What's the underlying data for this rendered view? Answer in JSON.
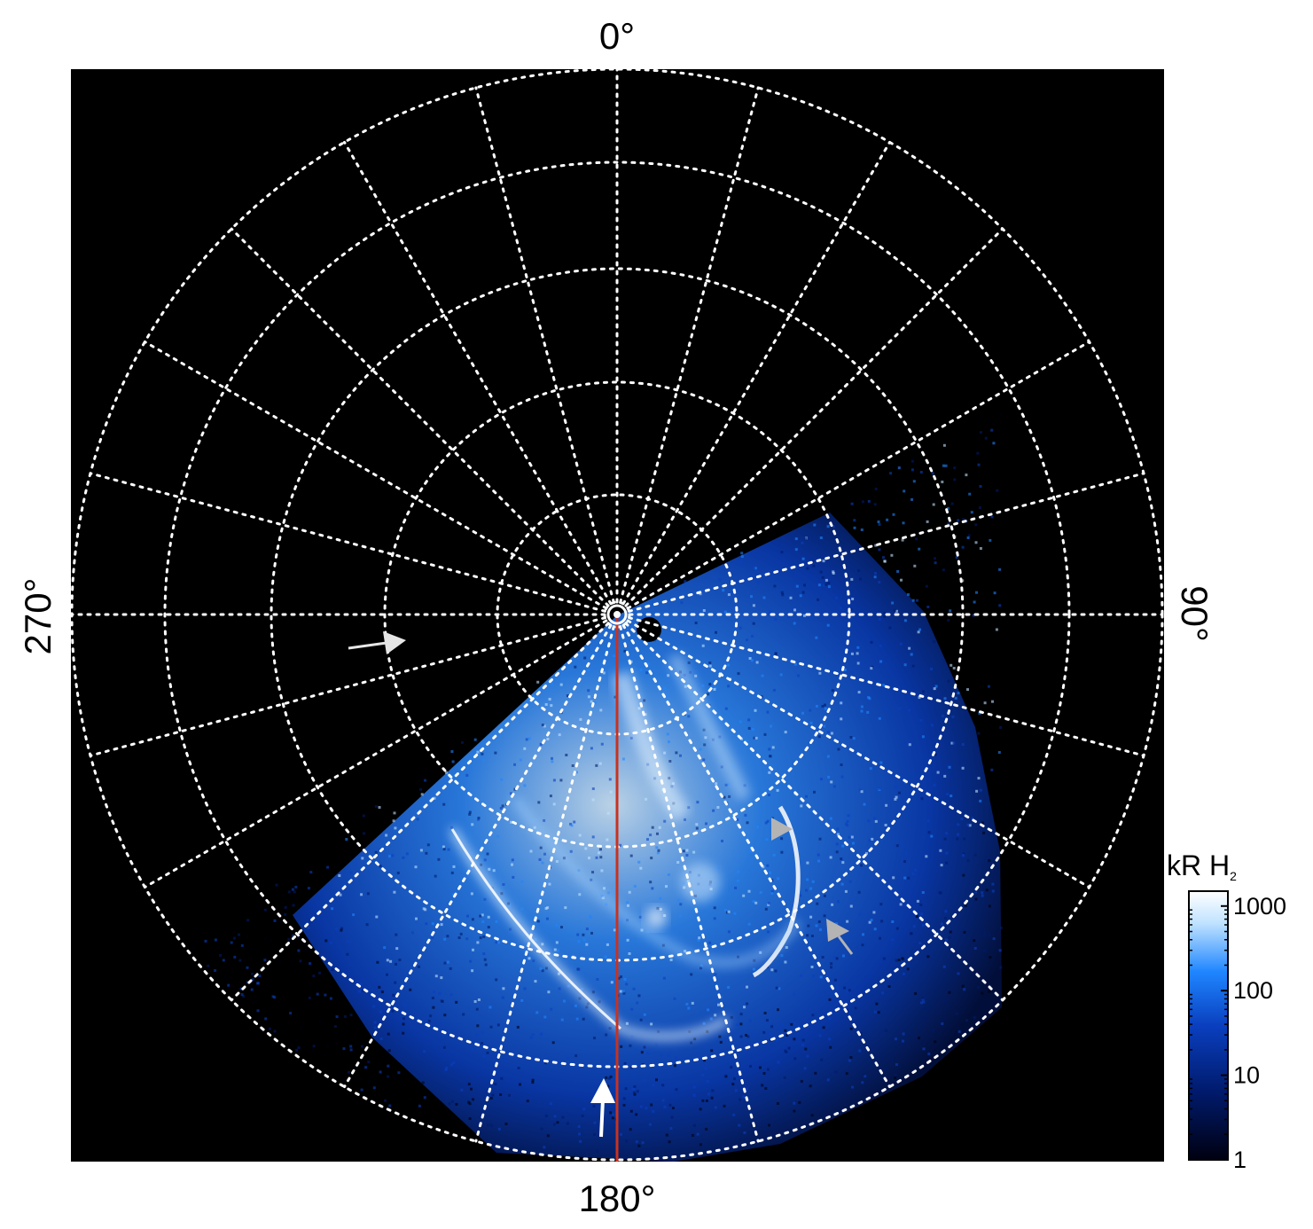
{
  "polar_map": {
    "longitude_labels": {
      "top": "0°",
      "right": "90°",
      "bottom": "180°",
      "left": "270°"
    },
    "background_color": "#000000",
    "grid_color": "#ffffff",
    "emission_color_scale": [
      "#000010",
      "#001a6b",
      "#0a3fbf",
      "#1f86ff",
      "#bfe2ff",
      "#ffffff"
    ],
    "meridian_line_color": "#c8321e",
    "annotations": [
      {
        "name": "white-arrow",
        "color": "#ffffff"
      },
      {
        "name": "gray-arrow",
        "color": "#b4b4b4"
      }
    ]
  },
  "colorbar": {
    "title": "kR H",
    "title_subscript": "2",
    "scale": "log",
    "ticks": [
      "1000",
      "100",
      "10",
      "1"
    ],
    "range": [
      1,
      1500
    ]
  }
}
